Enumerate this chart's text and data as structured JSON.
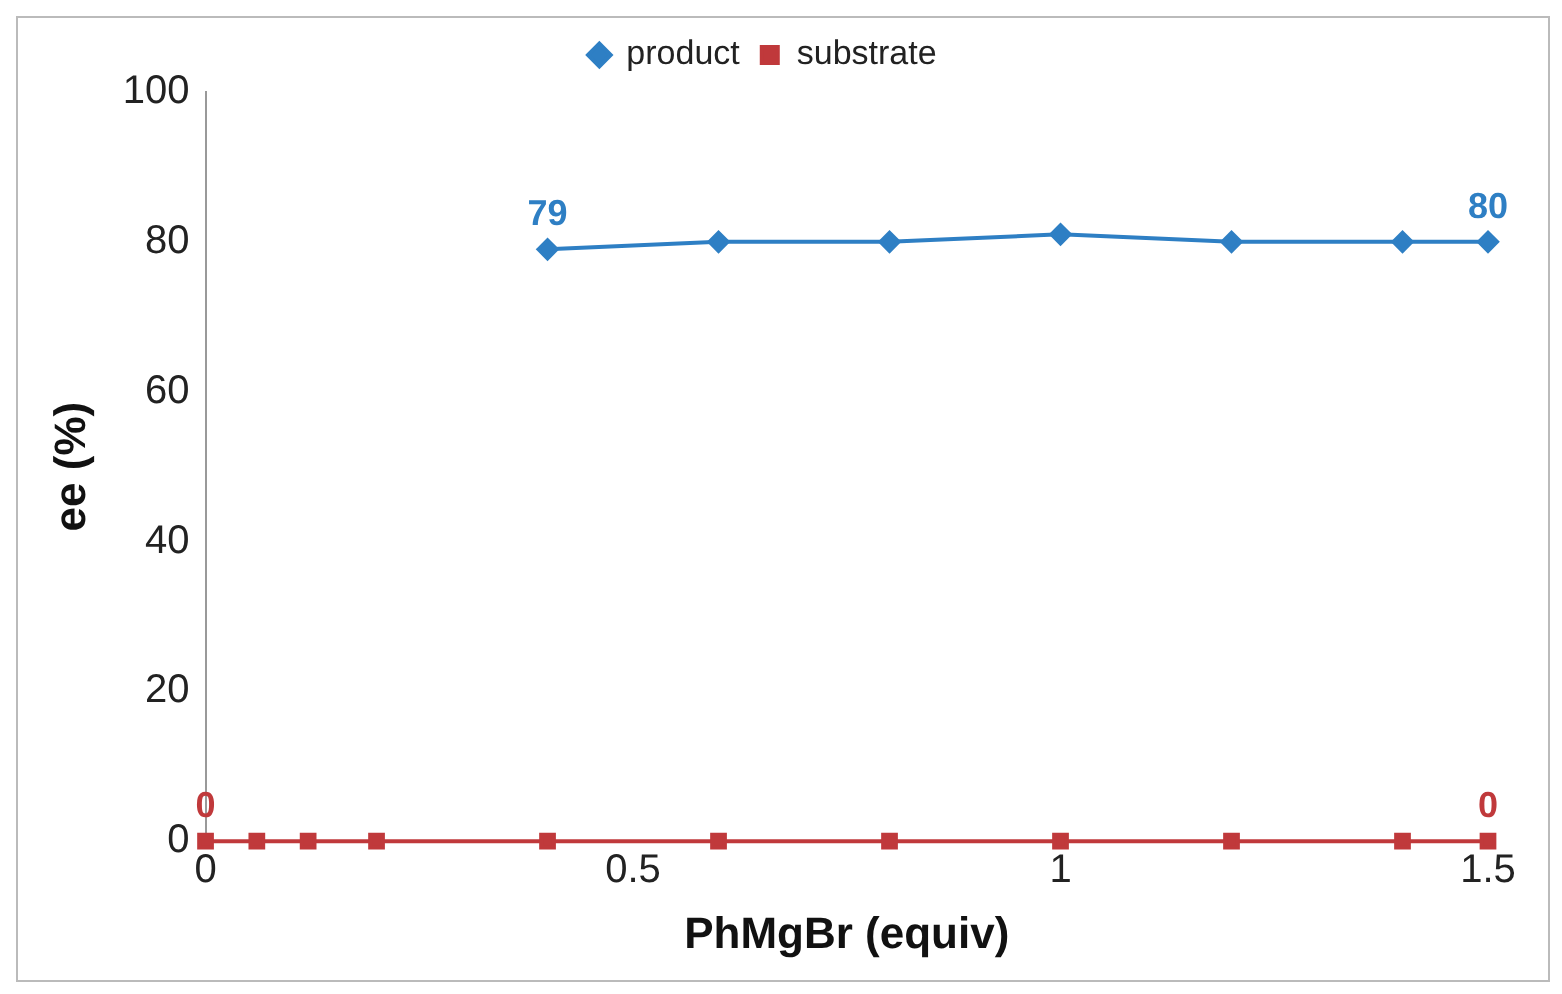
{
  "chart_data": {
    "type": "line",
    "xlabel": "PhMgBr (equiv)",
    "ylabel": "ee (%)",
    "xlim": [
      0,
      1.5
    ],
    "xticks": [
      0,
      0.5,
      1,
      1.5
    ],
    "ylim": [
      0,
      100
    ],
    "yticks": [
      0,
      20,
      40,
      60,
      80,
      100
    ],
    "grid": false,
    "legend": "top",
    "series": [
      {
        "name": "product",
        "color": "#2e7fc4",
        "marker": "diamond",
        "x": [
          0.4,
          0.6,
          0.8,
          1.0,
          1.2,
          1.4,
          1.5
        ],
        "values": [
          79,
          80,
          80,
          81,
          80,
          80,
          80
        ],
        "value_labels": [
          "79",
          null,
          null,
          null,
          null,
          null,
          "80"
        ]
      },
      {
        "name": "substrate",
        "color": "#c0393b",
        "marker": "square",
        "x": [
          0,
          0.06,
          0.12,
          0.2,
          0.4,
          0.6,
          0.8,
          1.0,
          1.2,
          1.4,
          1.5
        ],
        "values": [
          0,
          0,
          0,
          0,
          0,
          0,
          0,
          0,
          0,
          0,
          0
        ],
        "value_labels": [
          "0",
          null,
          null,
          null,
          null,
          null,
          null,
          null,
          null,
          null,
          "0"
        ]
      }
    ]
  }
}
